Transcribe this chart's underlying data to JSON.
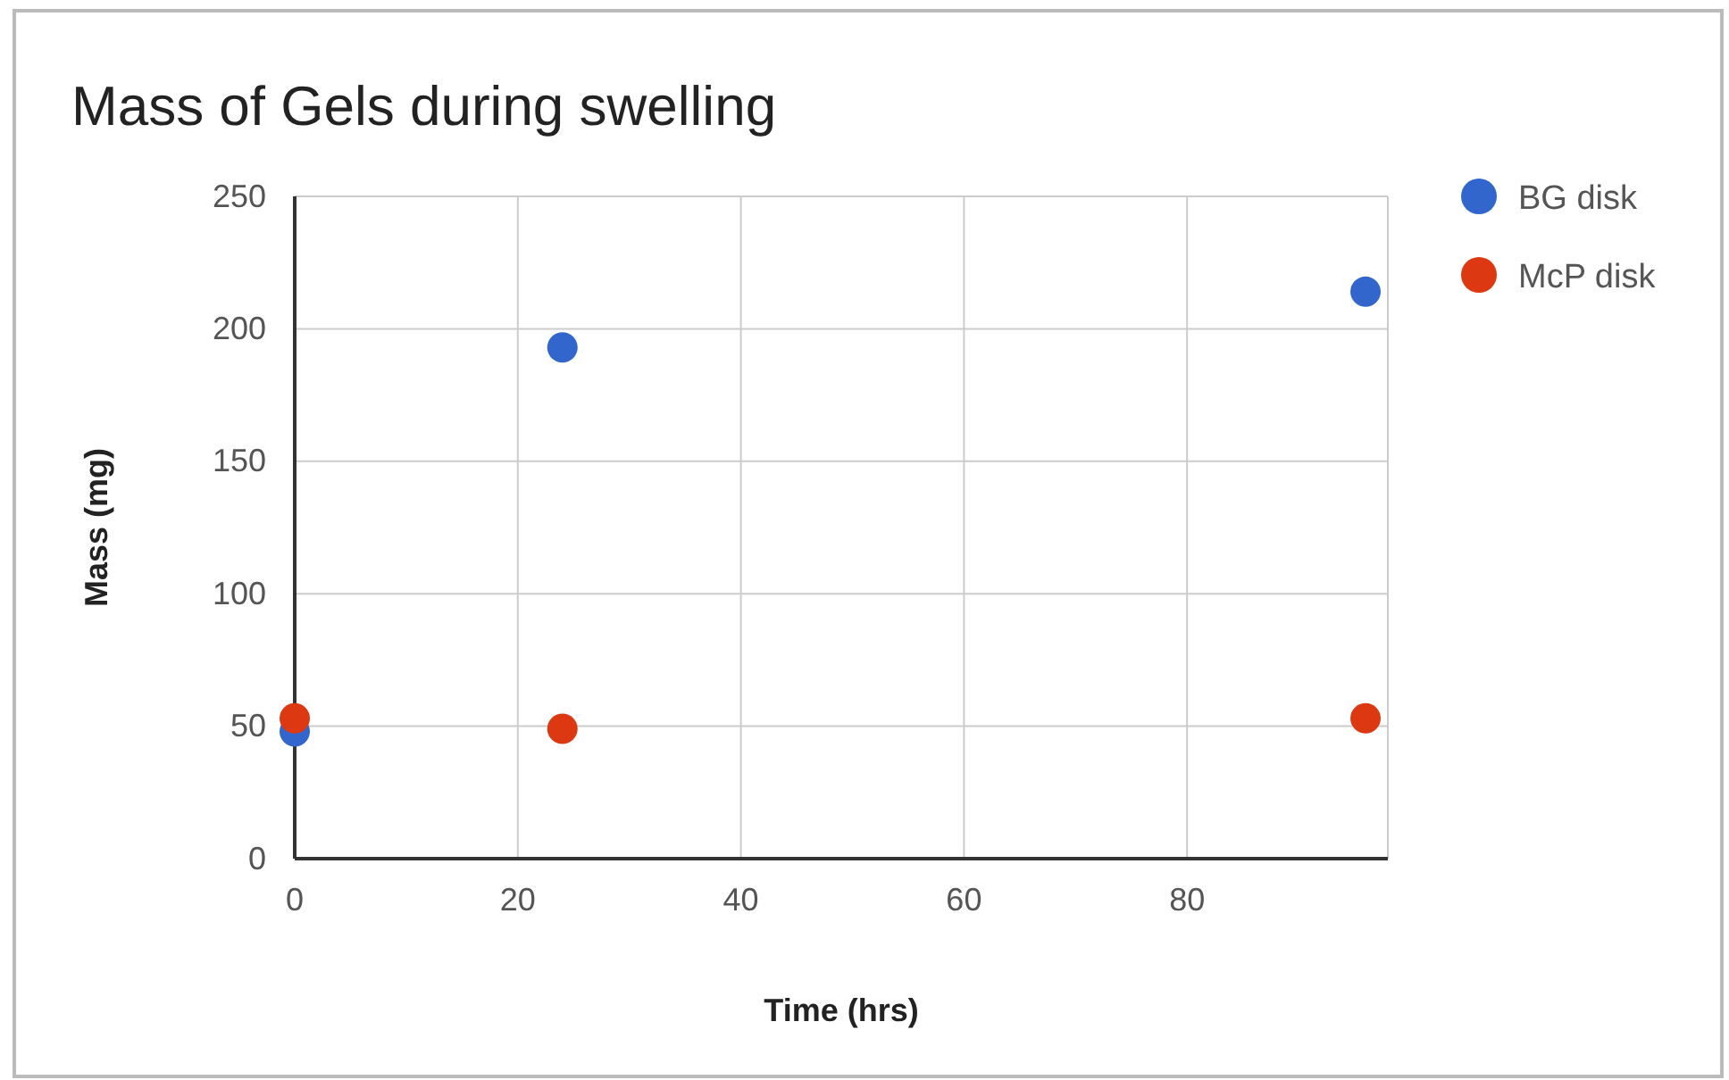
{
  "chart_data": {
    "type": "scatter",
    "title": "Mass of Gels during swelling",
    "xlabel": "Time (hrs)",
    "ylabel": "Mass (mg)",
    "x": [
      0,
      24,
      96
    ],
    "series": [
      {
        "name": "BG disk",
        "color": "#3366cc",
        "values": [
          48,
          193,
          214
        ]
      },
      {
        "name": "McP disk",
        "color": "#dc3912",
        "values": [
          53,
          49,
          53
        ]
      }
    ],
    "xlim": [
      0,
      98
    ],
    "xticks": [
      0,
      20,
      40,
      60,
      80
    ],
    "ylim": [
      0,
      250
    ],
    "yticks": [
      0,
      50,
      100,
      150,
      200,
      250
    ],
    "grid": true,
    "legend": "right",
    "marker": "circle"
  }
}
